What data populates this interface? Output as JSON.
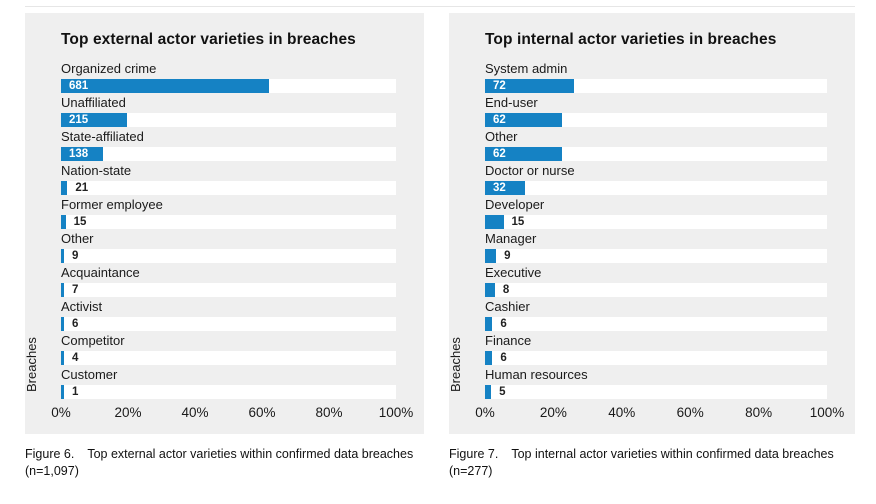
{
  "colors": {
    "bar_blue": "#1582c4",
    "panel_bg": "#efefef",
    "track_white": "#ffffff",
    "value_inside_text": "#ffffff",
    "value_outside_text": "#222222",
    "text_dark": "#1a1a1a"
  },
  "chart_data": [
    {
      "type": "bar",
      "orientation": "horizontal",
      "title": "Top external actor varieties in breaches",
      "ylabel": "Breaches",
      "xlabel": "",
      "x_ticks": [
        "0%",
        "20%",
        "40%",
        "60%",
        "80%",
        "100%"
      ],
      "xlim": [
        0,
        100
      ],
      "n": 1097,
      "categories": [
        "Organized crime",
        "Unaffiliated",
        "State-affiliated",
        "Nation-state",
        "Former employee",
        "Other",
        "Acquaintance",
        "Activist",
        "Competitor",
        "Customer"
      ],
      "values": [
        681,
        215,
        138,
        21,
        15,
        9,
        7,
        6,
        4,
        1
      ],
      "value_label_inside_threshold_pct": 10,
      "caption": {
        "figure": "Figure 6.",
        "text": "Top external actor varieties within confirmed data breaches",
        "n_label": "(n=1,097)"
      }
    },
    {
      "type": "bar",
      "orientation": "horizontal",
      "title": "Top internal actor varieties in breaches",
      "ylabel": "Breaches",
      "xlabel": "",
      "x_ticks": [
        "0%",
        "20%",
        "40%",
        "60%",
        "80%",
        "100%"
      ],
      "xlim": [
        0,
        100
      ],
      "n": 277,
      "categories": [
        "System admin",
        "End-user",
        "Other",
        "Doctor or nurse",
        "Developer",
        "Manager",
        "Executive",
        "Cashier",
        "Finance",
        "Human resources"
      ],
      "values": [
        72,
        62,
        62,
        32,
        15,
        9,
        8,
        6,
        6,
        5
      ],
      "value_label_inside_threshold_pct": 10,
      "caption": {
        "figure": "Figure 7.",
        "text": "Top internal actor varieties within confirmed data breaches",
        "n_label": "(n=277)"
      }
    }
  ]
}
